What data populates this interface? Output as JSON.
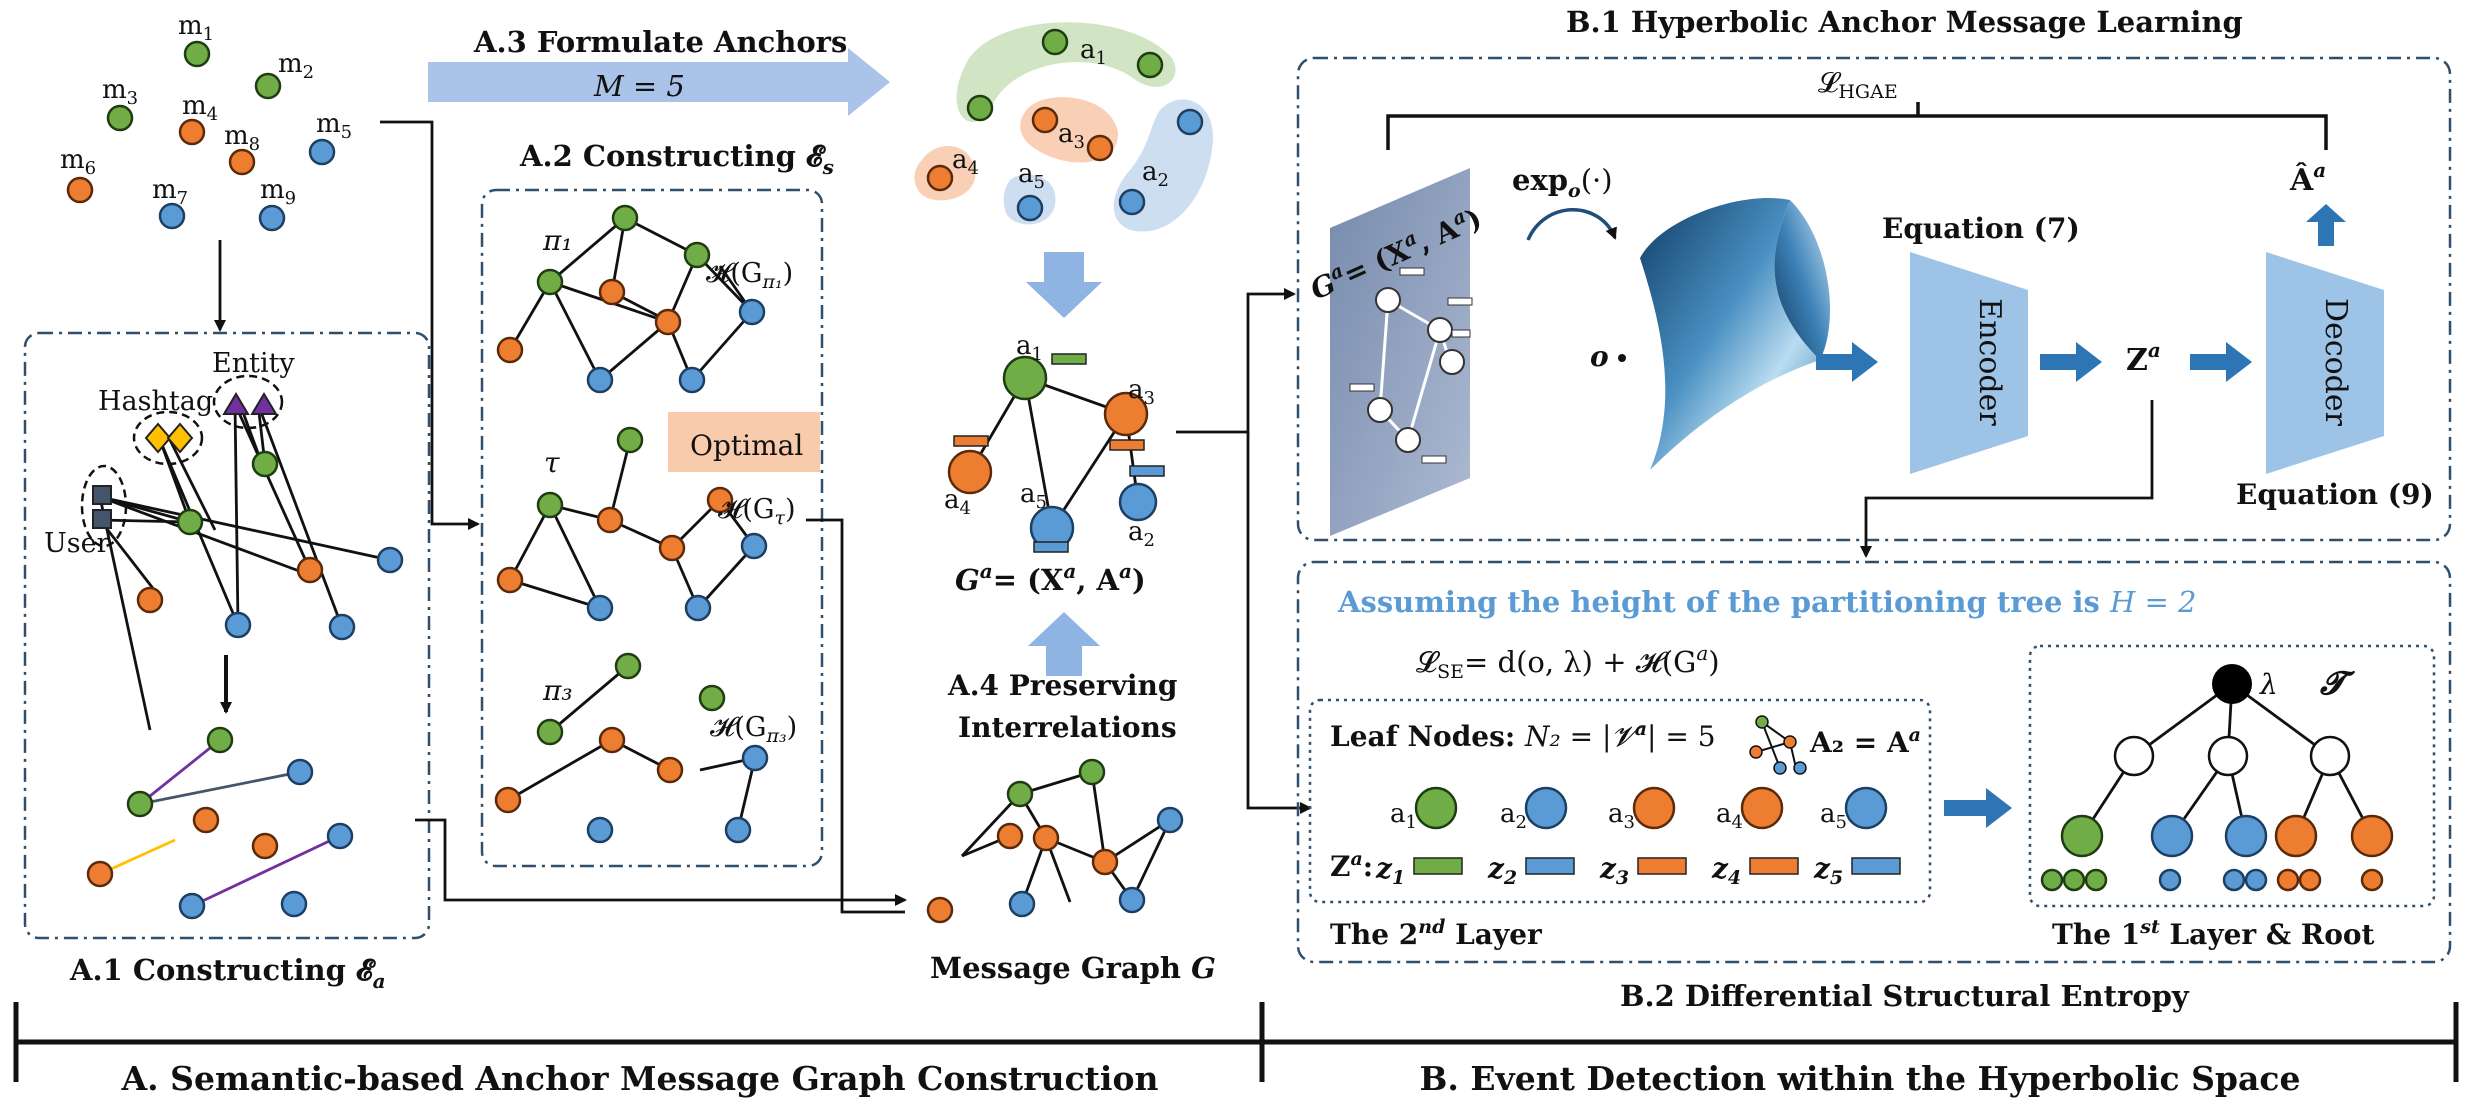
{
  "colors": {
    "green": "#70ad47",
    "orange": "#ed7d31",
    "blue": "#5b9bd5",
    "light_blue_arrow": "#8fb4e3",
    "trapezoid": "#9dc3e6",
    "title_blue": "#5b9bd5",
    "optimal_bg": "#f8cbad"
  },
  "messages": [
    "m",
    "m",
    "m",
    "m",
    "m",
    "m",
    "m",
    "m",
    "m"
  ],
  "message_subscripts": [
    "1",
    "2",
    "3",
    "4",
    "5",
    "6",
    "7",
    "8",
    "9"
  ],
  "a1": {
    "entity_label": "Entity",
    "hashtag_label": "Hashtag",
    "user_label": "User",
    "caption": "A.1 Constructing 𝓔",
    "caption_sub": "a"
  },
  "a2": {
    "caption": "A.2 Constructing 𝓔",
    "caption_sub": "s",
    "pi1": "π₁",
    "tau": "τ",
    "pi3": "π₃",
    "h_pi1": "𝓗(G",
    "h_pi1_sub": "π₁",
    "h_tau": "𝓗(G",
    "h_tau_sub": "τ",
    "h_pi3": "𝓗(G",
    "h_pi3_sub": "π₃",
    "optimal": "Optimal"
  },
  "a3": {
    "caption": "A.3 Formulate Anchors",
    "m_eq": "M = 5",
    "anchor_labels": [
      "a",
      "a",
      "a",
      "a",
      "a"
    ],
    "anchor_subs": [
      "1",
      "2",
      "3",
      "4",
      "5"
    ]
  },
  "anchor_graph": {
    "label": "G",
    "label_sup": "a",
    "eq": "= (X",
    "eq_x_sup": "a",
    "eq_mid": ", A",
    "eq_a_sup": "a",
    "eq_end": ")"
  },
  "a4": {
    "caption_line1": "A.4 Preserving",
    "caption_line2": "Interrelations"
  },
  "message_graph": {
    "caption": "Message Graph ",
    "caption_var": "G"
  },
  "b1": {
    "title": "B.1 Hyperbolic Anchor Message Learning",
    "loss": "𝓛",
    "loss_sub": "HGAE",
    "plane_label": "G",
    "plane_label_sup": "a",
    "plane_label_eq": "= (X",
    "plane_label_x_sup": "a",
    "plane_label_a": ", A",
    "plane_label_a_sup": "a",
    "plane_label_end": ")",
    "exp_map": "exp",
    "exp_sub": "o",
    "exp_arg": "(·)",
    "origin": "o",
    "equation7": "Equation (7)",
    "encoder": "Encoder",
    "z_label": "Z",
    "z_sup": "a",
    "decoder": "Decoder",
    "a_hat": "Â",
    "a_hat_sup": "a",
    "equation9": "Equation (9)"
  },
  "b2": {
    "title": "B.2 Differential Structural Entropy",
    "assumption": "Assuming the height of the partitioning tree is ",
    "assumption_var": "H = 2",
    "loss_se": "𝓛",
    "loss_se_sub": "SE",
    "loss_se_eq": "= d(o, λ) + 𝓗(G",
    "loss_se_sup": "a",
    "loss_se_end": ")",
    "leaf_nodes": "Leaf Nodes: ",
    "leaf_eq": "N₂ = |𝓥",
    "leaf_eq_sup": "a",
    "leaf_eq_end": "| = 5",
    "a2_eq": "A₂ = A",
    "a2_eq_sup": "a",
    "leaf_labels": [
      "a",
      "a",
      "a",
      "a",
      "a"
    ],
    "leaf_subs": [
      "1",
      "2",
      "3",
      "4",
      "5"
    ],
    "z_row_label": "Z",
    "z_row_sup": "a",
    "z_row_colon": ":",
    "z_items": [
      "z",
      "z",
      "z",
      "z",
      "z"
    ],
    "z_subs": [
      "1",
      "2",
      "3",
      "4",
      "5"
    ],
    "layer2": "The 2",
    "layer2_sup": "nd",
    "layer2_end": " Layer",
    "lambda": "λ",
    "tree_label": "𝓣",
    "layer1": "The 1",
    "layer1_sup": "st",
    "layer1_end": " Layer & Root"
  },
  "bottom": {
    "section_a": "A. Semantic-based Anchor Message Graph Construction",
    "section_b": "B. Event Detection within the Hyperbolic Space"
  }
}
